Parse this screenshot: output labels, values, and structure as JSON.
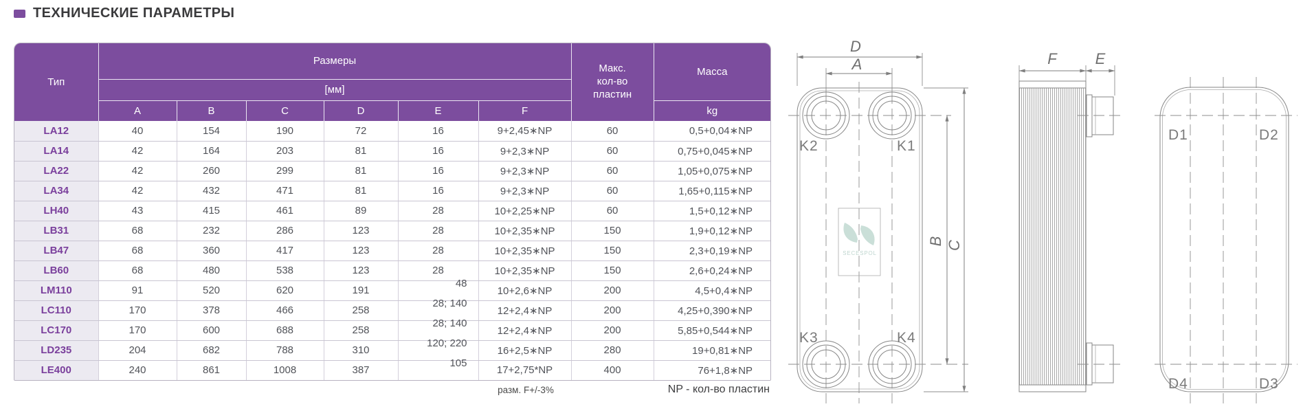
{
  "page": {
    "title": "ТЕХНИЧЕСКИЕ ПАРАМЕТРЫ",
    "accent_color": "#7C4D9E"
  },
  "table": {
    "header": {
      "type": "Тип",
      "dimensions": "Размеры",
      "unit": "[мм]",
      "columns": [
        "A",
        "B",
        "C",
        "D",
        "E",
        "F"
      ],
      "max_plates": "Макс.\nкол-во\nпластин",
      "mass": "Масса",
      "mass_unit": "kg"
    },
    "rows": [
      [
        "LA12",
        "40",
        "154",
        "190",
        "72",
        "16",
        "9+2,45∗NP",
        "60",
        "0,5+0,04∗NP"
      ],
      [
        "LA14",
        "42",
        "164",
        "203",
        "81",
        "16",
        "9+2,3∗NP",
        "60",
        "0,75+0,045∗NP"
      ],
      [
        "LA22",
        "42",
        "260",
        "299",
        "81",
        "16",
        "9+2,3∗NP",
        "60",
        "1,05+0,075∗NP"
      ],
      [
        "LA34",
        "42",
        "432",
        "471",
        "81",
        "16",
        "9+2,3∗NP",
        "60",
        "1,65+0,115∗NP"
      ],
      [
        "LH40",
        "43",
        "415",
        "461",
        "89",
        "28",
        "10+2,25∗NP",
        "60",
        "1,5+0,12∗NP"
      ],
      [
        "LB31",
        "68",
        "232",
        "286",
        "123",
        "28",
        "10+2,35∗NP",
        "150",
        "1,9+0,12∗NP"
      ],
      [
        "LB47",
        "68",
        "360",
        "417",
        "123",
        "28",
        "10+2,35∗NP",
        "150",
        "2,3+0,19∗NP"
      ],
      [
        "LB60",
        "68",
        "480",
        "538",
        "123",
        "28",
        "10+2,35∗NP",
        "150",
        "2,6+0,24∗NP"
      ],
      [
        "LM110",
        "91",
        "520",
        "620",
        "191",
        "48",
        "10+2,6∗NP",
        "200",
        "4,5+0,4∗NP"
      ],
      [
        "LC110",
        "170",
        "378",
        "466",
        "258",
        "28; 140",
        "12+2,4∗NP",
        "200",
        "4,25+0,390∗NP"
      ],
      [
        "LC170",
        "170",
        "600",
        "688",
        "258",
        "28; 140",
        "12+2,4∗NP",
        "200",
        "5,85+0,544∗NP"
      ],
      [
        "LD235",
        "204",
        "682",
        "788",
        "310",
        "120; 220",
        "16+2,5∗NP",
        "280",
        "19+0,81∗NP"
      ],
      [
        "LE400",
        "240",
        "861",
        "1008",
        "387",
        "105",
        "17+2,75*NP",
        "400",
        "76+1,8∗NP"
      ]
    ],
    "footnote_dimension": "разм. F+/-3%",
    "footnote_np": "NP - кол-во пластин"
  },
  "drawing": {
    "front": {
      "dim_width_total": "D",
      "dim_port_spacing": "A",
      "dim_height_ports": "B",
      "dim_height_total": "C",
      "port_top_left": "K2",
      "port_top_right": "K1",
      "port_bottom_left": "K3",
      "port_bottom_right": "K4",
      "watermark": "SECESPOL"
    },
    "side": {
      "dim_pack_width": "F",
      "dim_connector": "E"
    },
    "rear": {
      "port_top_left": "D1",
      "port_top_right": "D2",
      "port_bottom_left": "D4",
      "port_bottom_right": "D3"
    }
  }
}
